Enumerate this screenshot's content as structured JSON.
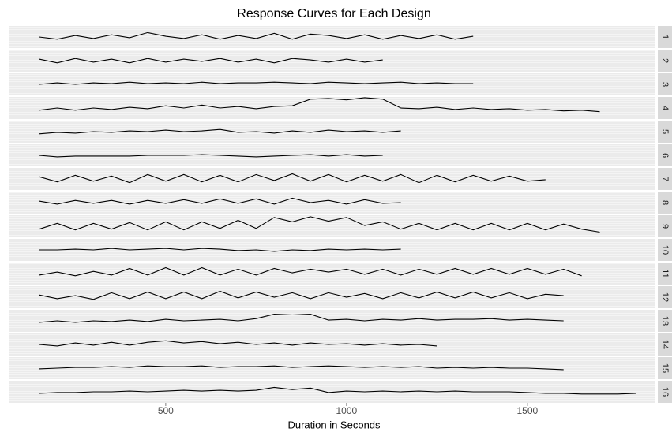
{
  "chart_data": {
    "type": "line",
    "title": "Response Curves for Each Design",
    "x_label": "Duration in Seconds",
    "x": [
      150,
      200,
      250,
      300,
      350,
      400,
      450,
      500,
      550,
      600,
      650,
      700,
      750,
      800,
      850,
      900,
      950,
      1000,
      1050,
      1100,
      1150,
      1200,
      1250,
      1300,
      1350,
      1400,
      1450,
      1500,
      1550,
      1600,
      1650,
      1700,
      1750,
      1800
    ],
    "xlim": [
      68,
      1854
    ],
    "xticks": [
      500,
      1000,
      1500
    ],
    "ylim": [
      -1.5,
      1.5
    ],
    "series": [
      {
        "name": "1",
        "color": "#000000",
        "values": [
          0,
          -0.3,
          0.2,
          -0.2,
          0.3,
          -0.1,
          0.6,
          0.1,
          -0.2,
          0.3,
          -0.3,
          0.2,
          -0.2,
          0.5,
          -0.3,
          0.4,
          0.2,
          -0.2,
          0.3,
          -0.3,
          0.2,
          -0.2,
          0.3,
          -0.3,
          0.1,
          null,
          null,
          null,
          null,
          null,
          null,
          null,
          null,
          null
        ]
      },
      {
        "name": "2",
        "color": "#000000",
        "values": [
          0.2,
          -0.3,
          0.3,
          -0.2,
          0.2,
          -0.3,
          0.3,
          -0.2,
          0.2,
          -0.1,
          0.3,
          -0.2,
          0.2,
          -0.3,
          0.3,
          0.1,
          -0.2,
          0.2,
          -0.2,
          0.1,
          null,
          null,
          null,
          null,
          null,
          null,
          null,
          null,
          null,
          null,
          null,
          null,
          null,
          null
        ]
      },
      {
        "name": "3",
        "color": "#000000",
        "values": [
          0,
          0.2,
          0,
          0.2,
          0.1,
          0.3,
          0.1,
          0.2,
          0.1,
          0.3,
          0.1,
          0.2,
          0.2,
          0.3,
          0.2,
          0.1,
          0.3,
          0.2,
          0.1,
          0.2,
          0.3,
          0.1,
          0.2,
          0.1,
          0.1,
          null,
          null,
          null,
          null,
          null,
          null,
          null,
          null,
          null
        ]
      },
      {
        "name": "4",
        "color": "#000000",
        "values": [
          -0.3,
          0,
          -0.3,
          0,
          -0.2,
          0.1,
          -0.1,
          0.3,
          0,
          0.4,
          0,
          0.2,
          -0.1,
          0.2,
          0.3,
          1.2,
          1.3,
          1.1,
          1.4,
          1.2,
          0,
          -0.1,
          0.1,
          -0.2,
          0,
          -0.2,
          -0.1,
          -0.3,
          -0.2,
          -0.4,
          -0.3,
          -0.5,
          null,
          null
        ]
      },
      {
        "name": "5",
        "color": "#000000",
        "values": [
          -0.3,
          -0.1,
          -0.2,
          0,
          -0.1,
          0.1,
          0,
          0.2,
          0,
          0.1,
          0.3,
          -0.1,
          0,
          -0.2,
          0.1,
          -0.1,
          0.2,
          0,
          0.1,
          -0.1,
          0.1,
          null,
          null,
          null,
          null,
          null,
          null,
          null,
          null,
          null,
          null,
          null,
          null,
          null
        ]
      },
      {
        "name": "6",
        "color": "#000000",
        "values": [
          0,
          -0.2,
          -0.1,
          -0.1,
          -0.1,
          -0.1,
          0,
          0,
          0,
          0.1,
          0,
          -0.1,
          -0.2,
          -0.1,
          0,
          0.1,
          -0.1,
          0.1,
          -0.1,
          0,
          null,
          null,
          null,
          null,
          null,
          null,
          null,
          null,
          null,
          null,
          null,
          null,
          null,
          null
        ]
      },
      {
        "name": "7",
        "color": "#000000",
        "values": [
          0.3,
          -0.4,
          0.5,
          -0.3,
          0.4,
          -0.5,
          0.6,
          -0.3,
          0.6,
          -0.4,
          0.5,
          -0.4,
          0.6,
          -0.2,
          0.7,
          -0.3,
          0.6,
          -0.4,
          0.5,
          -0.3,
          0.6,
          -0.5,
          0.5,
          -0.4,
          0.5,
          -0.3,
          0.4,
          -0.3,
          -0.1,
          null,
          null,
          null,
          null,
          null
        ]
      },
      {
        "name": "8",
        "color": "#000000",
        "values": [
          0.2,
          -0.2,
          0.3,
          -0.1,
          0.3,
          -0.2,
          0.3,
          -0.1,
          0.4,
          -0.1,
          0.5,
          -0.1,
          0.5,
          -0.2,
          0.6,
          0,
          0.3,
          -0.2,
          0.4,
          -0.1,
          0,
          null,
          null,
          null,
          null,
          null,
          null,
          null,
          null,
          null,
          null,
          null,
          null,
          null
        ]
      },
      {
        "name": "9",
        "color": "#000000",
        "values": [
          -0.4,
          0.4,
          -0.5,
          0.4,
          -0.4,
          0.5,
          -0.5,
          0.6,
          -0.5,
          0.6,
          -0.3,
          0.8,
          -0.3,
          1.2,
          0.6,
          1.3,
          0.7,
          1.2,
          0.1,
          0.6,
          -0.4,
          0.4,
          -0.5,
          0.4,
          -0.5,
          0.4,
          -0.5,
          0.4,
          -0.5,
          0.3,
          -0.4,
          -0.8,
          null,
          null
        ]
      },
      {
        "name": "10",
        "color": "#000000",
        "values": [
          0,
          0,
          0.1,
          0,
          0.2,
          0,
          0.1,
          0.2,
          0,
          0.2,
          0.1,
          -0.1,
          0,
          -0.2,
          0,
          -0.1,
          0.1,
          0,
          0.1,
          0,
          0.1,
          null,
          null,
          null,
          null,
          null,
          null,
          null,
          null,
          null,
          null,
          null,
          null,
          null
        ]
      },
      {
        "name": "11",
        "color": "#000000",
        "values": [
          -0.2,
          0.2,
          -0.3,
          0.3,
          -0.2,
          0.7,
          -0.2,
          0.8,
          -0.2,
          0.8,
          -0.2,
          0.6,
          -0.2,
          0.7,
          0.1,
          0.6,
          0.2,
          0.6,
          -0.1,
          0.6,
          -0.2,
          0.6,
          -0.1,
          0.7,
          -0.1,
          0.7,
          -0.1,
          0.7,
          -0.1,
          0.6,
          -0.3,
          null,
          null,
          null
        ]
      },
      {
        "name": "12",
        "color": "#000000",
        "values": [
          0.3,
          -0.2,
          0.2,
          -0.3,
          0.6,
          -0.2,
          0.7,
          -0.2,
          0.7,
          -0.2,
          0.8,
          -0.1,
          0.7,
          0,
          0.6,
          -0.2,
          0.6,
          0,
          0.5,
          -0.2,
          0.6,
          -0.1,
          0.7,
          -0.1,
          0.7,
          -0.1,
          0.6,
          -0.2,
          0.4,
          0.2,
          null,
          null,
          null,
          null
        ]
      },
      {
        "name": "13",
        "color": "#000000",
        "values": [
          -0.2,
          0,
          -0.2,
          0,
          -0.1,
          0.1,
          -0.1,
          0.2,
          0,
          0.1,
          0.2,
          0,
          0.3,
          0.9,
          0.8,
          0.9,
          0.1,
          0.2,
          0,
          0.2,
          0.1,
          0.3,
          0.1,
          0.2,
          0.2,
          0.3,
          0.1,
          0.2,
          0.1,
          0,
          null,
          null,
          null,
          null
        ]
      },
      {
        "name": "14",
        "color": "#000000",
        "values": [
          0,
          -0.2,
          0.2,
          -0.1,
          0.3,
          -0.1,
          0.3,
          0.5,
          0.2,
          0.4,
          0.1,
          0.3,
          0,
          0.2,
          -0.1,
          0.2,
          0,
          0.1,
          -0.1,
          0.1,
          -0.1,
          0,
          -0.2,
          null,
          null,
          null,
          null,
          null,
          null,
          null,
          null,
          null,
          null,
          null
        ]
      },
      {
        "name": "15",
        "color": "#000000",
        "values": [
          -0.1,
          0,
          0.1,
          0.1,
          0.2,
          0.1,
          0.3,
          0.2,
          0.2,
          0.3,
          0.1,
          0.2,
          0.2,
          0.3,
          0.1,
          0.2,
          0.3,
          0.2,
          0.1,
          0.2,
          0.1,
          0.2,
          0,
          0.1,
          0,
          0.1,
          0,
          0,
          -0.1,
          -0.2,
          null,
          null,
          null,
          null
        ]
      },
      {
        "name": "16",
        "color": "#000000",
        "values": [
          -0.2,
          -0.1,
          -0.1,
          0,
          0,
          0.1,
          0,
          0.1,
          0.2,
          0.1,
          0.2,
          0.1,
          0.2,
          0.6,
          0.3,
          0.5,
          -0.1,
          0.1,
          0,
          0.1,
          0,
          0.1,
          0,
          0.1,
          0,
          0,
          0,
          -0.1,
          -0.2,
          -0.2,
          -0.3,
          -0.3,
          -0.3,
          -0.2
        ]
      }
    ]
  }
}
